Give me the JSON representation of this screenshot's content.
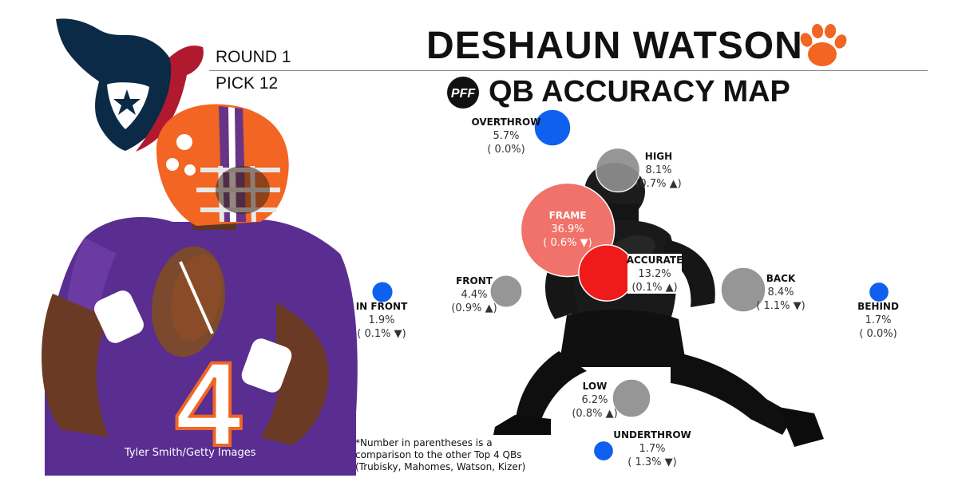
{
  "header": {
    "player_name": "DESHAUN WATSON",
    "map_title": "QB ACCURACY MAP",
    "pff_logo_text": "PFF",
    "round": "ROUND 1",
    "pick": "PICK 12"
  },
  "photo_credit": "Tyler Smith/Getty Images",
  "player_jersey_number": "4",
  "footnote": [
    "*Number in parentheses is a",
    "comparison to the other Top 4 QBs",
    "(Trubisky, Mahomes, Watson, Kizer)"
  ],
  "icons": {
    "team_logo": "texans-logo",
    "college_logo": "clemson-paw-icon",
    "pff_logo": "pff-logo",
    "player_photo": "player-photo",
    "silhouette": "qb-silhouette"
  },
  "colors": {
    "neutral": "#8e8e8e",
    "accurate": "#ef1a1a",
    "frame": "#f0726a",
    "miss": "#1060f0",
    "texans_navy": "#0b2a45",
    "texans_red": "#b11a2e",
    "clemson_orange": "#f26522",
    "clemson_purple": "#5a2d91"
  },
  "chart_data": {
    "type": "scatter",
    "title": "QB ACCURACY MAP",
    "size_encodes": "share of throws (%)",
    "points": [
      {
        "label": "OVERTHROW",
        "value": 5.7,
        "comparison": "( 0.0%)",
        "direction": "none",
        "category": "miss"
      },
      {
        "label": "HIGH",
        "value": 8.1,
        "comparison": "(0.7% ▲)",
        "direction": "up",
        "category": "neutral"
      },
      {
        "label": "FRAME",
        "value": 36.9,
        "comparison": "( 0.6% ▼)",
        "direction": "down",
        "category": "frame"
      },
      {
        "label": "ACCURATE",
        "value": 13.2,
        "comparison": "(0.1% ▲)",
        "direction": "up",
        "category": "accurate"
      },
      {
        "label": "FRONT",
        "value": 4.4,
        "comparison": "(0.9% ▲)",
        "direction": "up",
        "category": "neutral"
      },
      {
        "label": "BACK",
        "value": 8.4,
        "comparison": "( 1.1% ▼)",
        "direction": "down",
        "category": "neutral"
      },
      {
        "label": "IN FRONT",
        "value": 1.9,
        "comparison": "( 0.1% ▼)",
        "direction": "down",
        "category": "miss"
      },
      {
        "label": "BEHIND",
        "value": 1.7,
        "comparison": "( 0.0%)",
        "direction": "none",
        "category": "miss"
      },
      {
        "label": "LOW",
        "value": 6.2,
        "comparison": "(0.8% ▲)",
        "direction": "up",
        "category": "neutral"
      },
      {
        "label": "UNDERTHROW",
        "value": 1.7,
        "comparison": "( 1.3% ▼)",
        "direction": "down",
        "category": "miss"
      }
    ]
  }
}
